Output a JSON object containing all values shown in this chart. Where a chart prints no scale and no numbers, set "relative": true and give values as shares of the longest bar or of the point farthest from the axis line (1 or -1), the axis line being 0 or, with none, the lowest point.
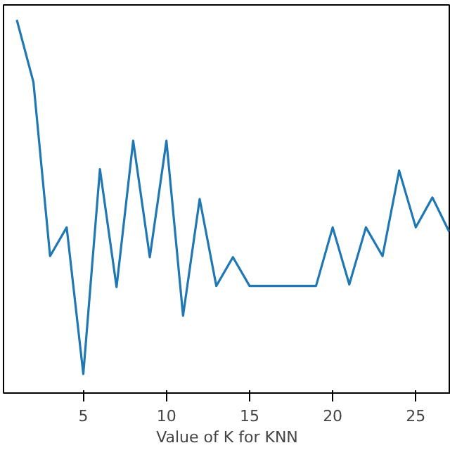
{
  "chart_data": {
    "type": "line",
    "xlabel": "Value of K for KNN",
    "relative": true,
    "x": [
      1,
      2,
      3,
      4,
      5,
      6,
      7,
      8,
      9,
      10,
      11,
      12,
      13,
      14,
      15,
      16,
      17,
      18,
      19,
      20,
      21,
      22,
      23,
      24,
      25,
      26,
      27
    ],
    "series": [
      {
        "color": "#1f77b4",
        "values": [
          1,
          0.833,
          0.367,
          0.444,
          0.051,
          0.6,
          0.284,
          0.676,
          0.364,
          0.676,
          0.207,
          0.52,
          0.287,
          0.364,
          0.287,
          0.287,
          0.287,
          0.287,
          0.287,
          0.444,
          0.291,
          0.444,
          0.367,
          0.596,
          0.444,
          0.524,
          0.433
        ]
      }
    ],
    "xlim": [
      0.2,
      27.1
    ],
    "xticks": [
      5,
      10,
      15,
      20,
      25
    ],
    "grid": false
  }
}
